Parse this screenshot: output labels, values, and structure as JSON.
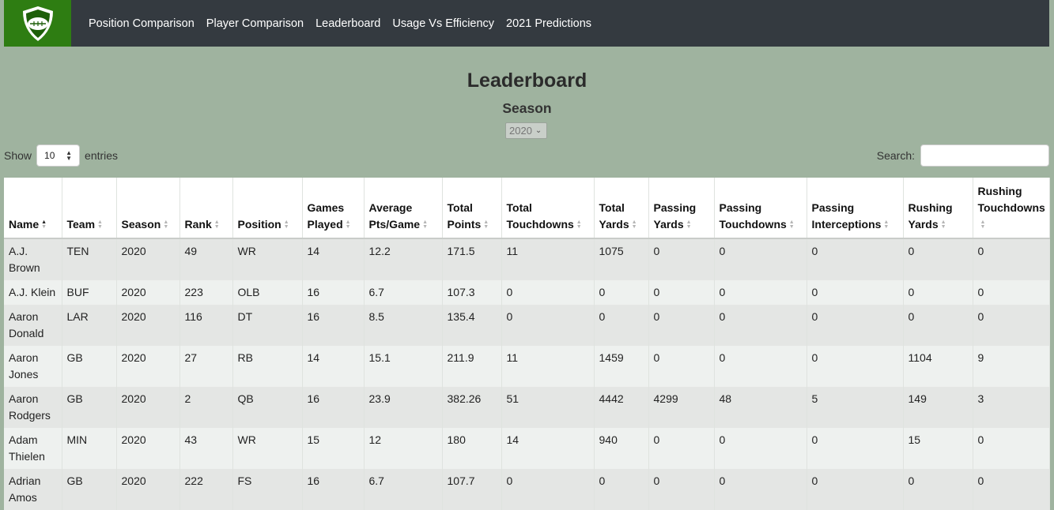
{
  "nav": {
    "links": [
      "Position Comparison",
      "Player Comparison",
      "Leaderboard",
      "Usage Vs Efficiency",
      "2021 Predictions"
    ],
    "brand_color": "#2e7d12",
    "bar_color": "#343a40"
  },
  "page": {
    "title": "Leaderboard",
    "subtitle": "Season",
    "season_value": "2020"
  },
  "controls": {
    "show_label": "Show",
    "entries_value": "10",
    "entries_label": "entries",
    "search_label": "Search:",
    "search_value": ""
  },
  "table": {
    "headers": [
      {
        "line1": "",
        "line2": "Name",
        "sorted": "asc"
      },
      {
        "line1": "",
        "line2": "Team",
        "sorted": ""
      },
      {
        "line1": "",
        "line2": "Season",
        "sorted": ""
      },
      {
        "line1": "",
        "line2": "Rank",
        "sorted": ""
      },
      {
        "line1": "",
        "line2": "Position",
        "sorted": ""
      },
      {
        "line1": "Games",
        "line2": "Played",
        "sorted": ""
      },
      {
        "line1": "Average",
        "line2": "Pts/Game",
        "sorted": ""
      },
      {
        "line1": "Total",
        "line2": "Points",
        "sorted": ""
      },
      {
        "line1": "Total",
        "line2": "Touchdowns",
        "sorted": ""
      },
      {
        "line1": "Total",
        "line2": "Yards",
        "sorted": ""
      },
      {
        "line1": "Passing",
        "line2": "Yards",
        "sorted": ""
      },
      {
        "line1": "Passing",
        "line2": "Touchdowns",
        "sorted": ""
      },
      {
        "line1": "Passing",
        "line2": "Interceptions",
        "sorted": ""
      },
      {
        "line1": "Rushing",
        "line2": "Yards",
        "sorted": ""
      },
      {
        "line1": "Rushing",
        "line2": "Touchdowns",
        "sorted": ""
      }
    ],
    "rows": [
      [
        [
          "A.J.",
          "Brown"
        ],
        "TEN",
        "2020",
        "49",
        "WR",
        "14",
        "12.2",
        "171.5",
        "11",
        "1075",
        "0",
        "0",
        "0",
        "0",
        "0"
      ],
      [
        [
          "A.J. Klein"
        ],
        "BUF",
        "2020",
        "223",
        "OLB",
        "16",
        "6.7",
        "107.3",
        "0",
        "0",
        "0",
        "0",
        "0",
        "0",
        "0"
      ],
      [
        [
          "Aaron",
          "Donald"
        ],
        "LAR",
        "2020",
        "116",
        "DT",
        "16",
        "8.5",
        "135.4",
        "0",
        "0",
        "0",
        "0",
        "0",
        "0",
        "0"
      ],
      [
        [
          "Aaron",
          "Jones"
        ],
        "GB",
        "2020",
        "27",
        "RB",
        "14",
        "15.1",
        "211.9",
        "11",
        "1459",
        "0",
        "0",
        "0",
        "1104",
        "9"
      ],
      [
        [
          "Aaron",
          "Rodgers"
        ],
        "GB",
        "2020",
        "2",
        "QB",
        "16",
        "23.9",
        "382.26",
        "51",
        "4442",
        "4299",
        "48",
        "5",
        "149",
        "3"
      ],
      [
        [
          "Adam",
          "Thielen"
        ],
        "MIN",
        "2020",
        "43",
        "WR",
        "15",
        "12",
        "180",
        "14",
        "940",
        "0",
        "0",
        "0",
        "15",
        "0"
      ],
      [
        [
          "Adrian",
          "Amos"
        ],
        "GB",
        "2020",
        "222",
        "FS",
        "16",
        "6.7",
        "107.7",
        "0",
        "0",
        "0",
        "0",
        "0",
        "0",
        "0"
      ]
    ]
  }
}
